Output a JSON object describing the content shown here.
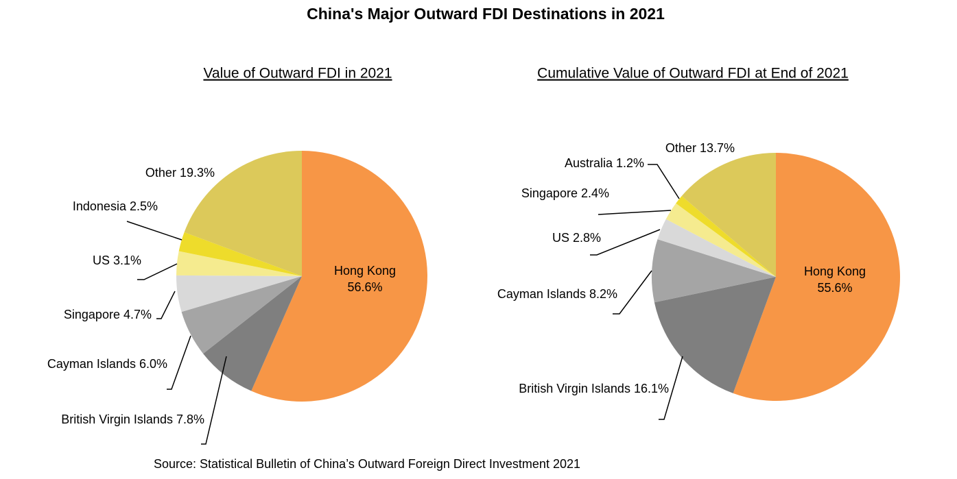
{
  "title": "China's Major Outward FDI Destinations in 2021",
  "source": "Source: Statistical Bulletin of China’s Outward Foreign Direct Investment 2021",
  "chart_data": [
    {
      "type": "pie",
      "title": "Value of Outward FDI in 2021",
      "categories": [
        "Hong Kong",
        "British Virgin Islands",
        "Cayman Islands",
        "Singapore",
        "US",
        "Indonesia",
        "Other"
      ],
      "values": [
        56.6,
        7.8,
        6.0,
        4.7,
        3.1,
        2.5,
        19.3
      ],
      "value_labels": [
        "56.6%",
        "7.8%",
        "6.0%",
        "4.7%",
        "3.1%",
        "2.5%",
        "19.3%"
      ],
      "colors": [
        "#F79646",
        "#7F7F7F",
        "#A5A5A5",
        "#D9D9D9",
        "#F5EB8F",
        "#EEDC2B",
        "#DCC95A"
      ]
    },
    {
      "type": "pie",
      "title": "Cumulative Value of Outward FDI at End of 2021",
      "categories": [
        "Hong Kong",
        "British Virgin Islands",
        "Cayman Islands",
        "US",
        "Singapore",
        "Australia",
        "Other"
      ],
      "values": [
        55.6,
        16.1,
        8.2,
        2.8,
        2.4,
        1.2,
        13.7
      ],
      "value_labels": [
        "55.6%",
        "16.1%",
        "8.2%",
        "2.8%",
        "2.4%",
        "1.2%",
        "13.7%"
      ],
      "colors": [
        "#F79646",
        "#7F7F7F",
        "#A5A5A5",
        "#D9D9D9",
        "#F5EB8F",
        "#EEDC2B",
        "#DCC95A"
      ]
    }
  ]
}
